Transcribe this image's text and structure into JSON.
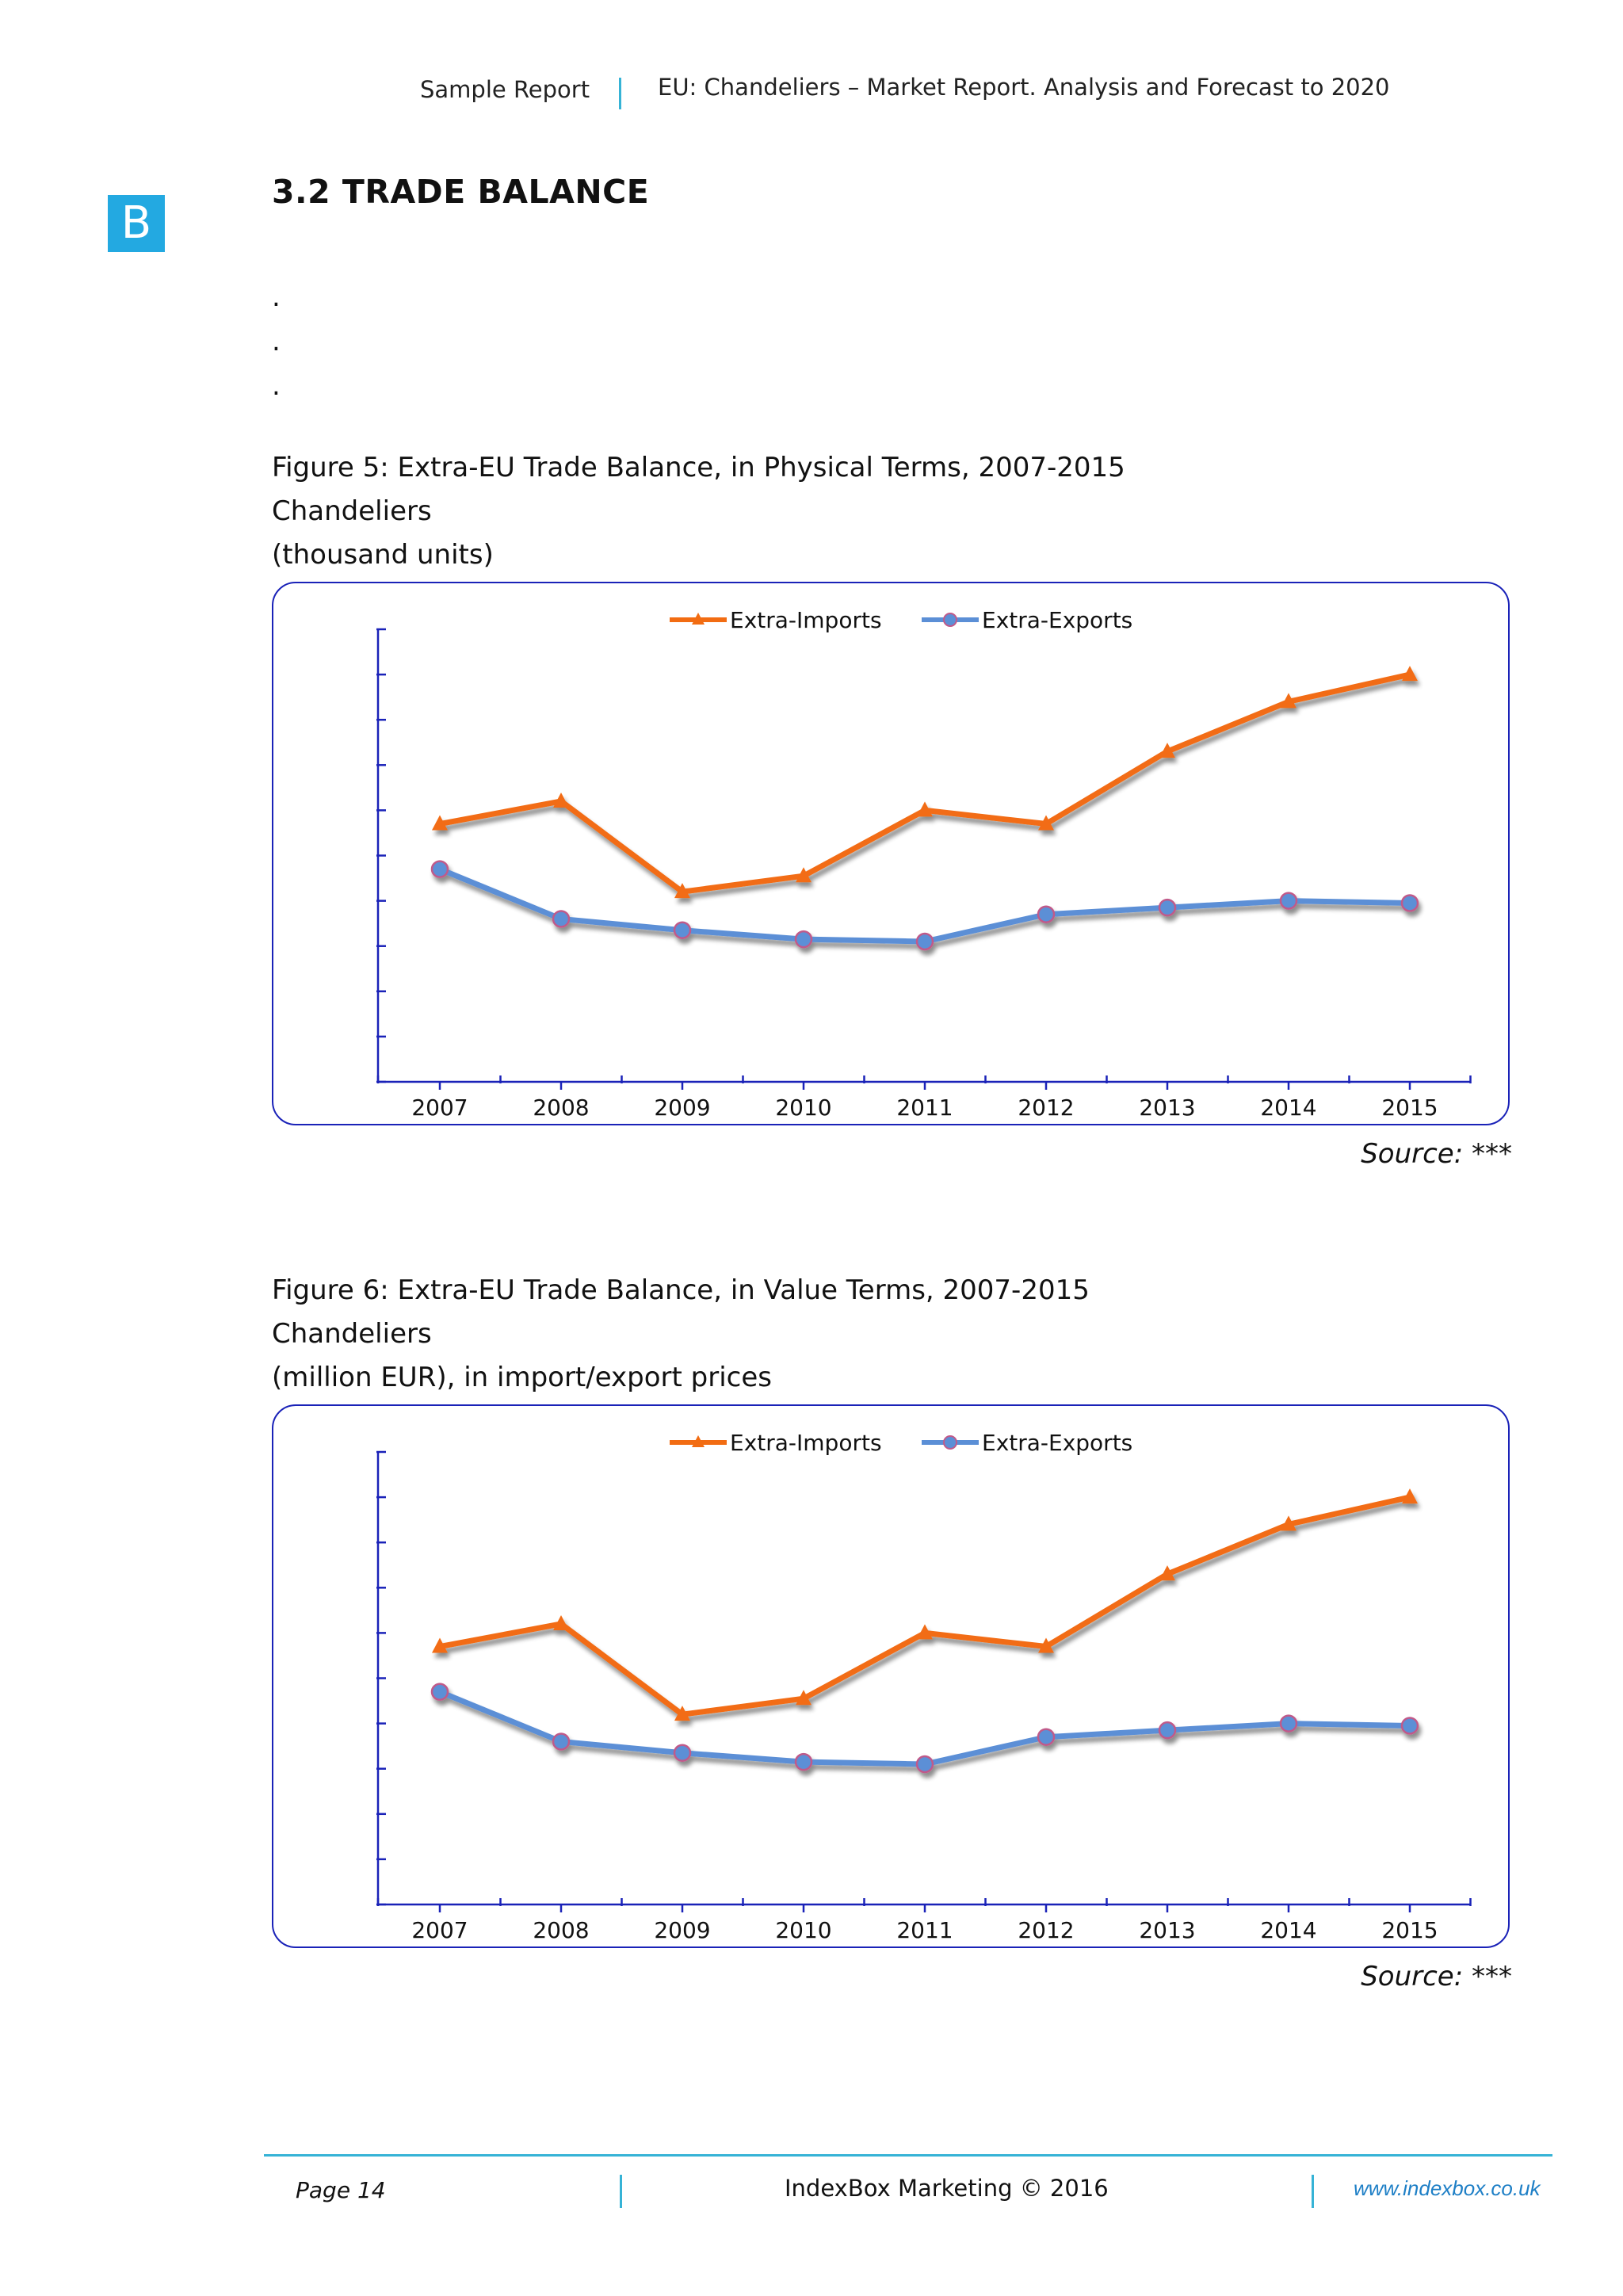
{
  "header": {
    "left": "Sample Report",
    "right": "EU: Chandeliers – Market Report. Analysis and Forecast to 2020"
  },
  "logo": {
    "letter": "B"
  },
  "section": {
    "title": "3.2 TRADE BALANCE",
    "dots": [
      ".",
      ".",
      "."
    ]
  },
  "figures": [
    {
      "caption": "Figure 5: Extra-EU Trade Balance, in Physical Terms, 2007-2015",
      "subject": "Chandeliers",
      "unit": "(thousand units)",
      "source": "Source:  ***"
    },
    {
      "caption": "Figure 6: Extra-EU Trade Balance, in Value Terms, 2007-2015",
      "subject": "Chandeliers",
      "unit": "(million EUR), in import/export prices",
      "source": "Source:  ***"
    }
  ],
  "chart_data": [
    {
      "type": "line",
      "x": [
        "2007",
        "2008",
        "2009",
        "2010",
        "2011",
        "2012",
        "2013",
        "2014",
        "2015"
      ],
      "series": [
        {
          "name": "Extra-Imports",
          "color": "#f26c12",
          "marker": "triangle",
          "values": [
            5.7,
            6.2,
            4.2,
            4.55,
            6.0,
            5.7,
            7.3,
            8.4,
            9.0
          ]
        },
        {
          "name": "Extra-Exports",
          "color": "#5b8fd6",
          "marker": "circle",
          "values": [
            4.7,
            3.6,
            3.35,
            3.15,
            3.1,
            3.7,
            3.85,
            4.0,
            3.95
          ]
        }
      ],
      "ylim": [
        0,
        10
      ],
      "y_tick_count": 10,
      "y_tick_labels_shown": false,
      "legend": "top-center"
    },
    {
      "type": "line",
      "x": [
        "2007",
        "2008",
        "2009",
        "2010",
        "2011",
        "2012",
        "2013",
        "2014",
        "2015"
      ],
      "series": [
        {
          "name": "Extra-Imports",
          "color": "#f26c12",
          "marker": "triangle",
          "values": [
            5.7,
            6.2,
            4.2,
            4.55,
            6.0,
            5.7,
            7.3,
            8.4,
            9.0
          ]
        },
        {
          "name": "Extra-Exports",
          "color": "#5b8fd6",
          "marker": "circle",
          "values": [
            4.7,
            3.6,
            3.35,
            3.15,
            3.1,
            3.7,
            3.85,
            4.0,
            3.95
          ]
        }
      ],
      "ylim": [
        0,
        10
      ],
      "y_tick_count": 10,
      "y_tick_labels_shown": false,
      "legend": "top-center"
    }
  ],
  "footer": {
    "page": "Page 14",
    "center": "IndexBox Marketing © 2016",
    "url": "www.indexbox.co.uk"
  }
}
